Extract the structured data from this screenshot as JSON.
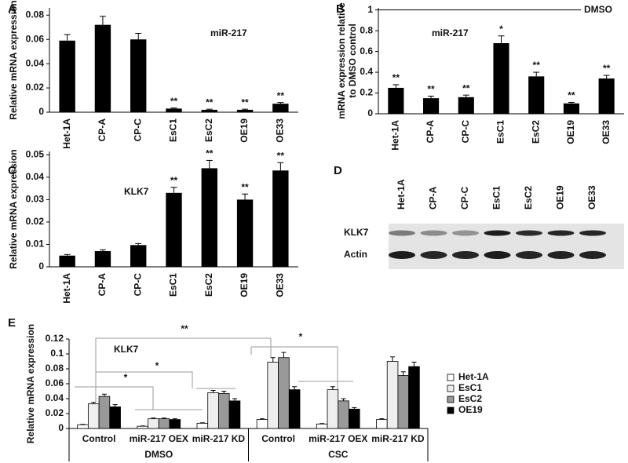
{
  "chart_data": [
    {
      "type": "bar",
      "panel": "A",
      "ylabel": "Relative mRNA expression",
      "annotation": "miR-217",
      "categories": [
        "Het-1A",
        "CP-A",
        "CP-C",
        "EsC1",
        "EsC2",
        "OE19",
        "OE33"
      ],
      "values": [
        0.059,
        0.072,
        0.06,
        0.003,
        0.002,
        0.002,
        0.007
      ],
      "errors": [
        0.005,
        0.007,
        0.005,
        0.0005,
        0.0005,
        0.0005,
        0.001
      ],
      "significance": [
        null,
        null,
        null,
        "**",
        "**",
        "**",
        "**"
      ],
      "color": "#000000",
      "ylim": [
        0,
        0.086
      ],
      "yticks": [
        0,
        0.02,
        0.04,
        0.06,
        0.08
      ]
    },
    {
      "type": "bar",
      "panel": "B",
      "ylabel": [
        "mRNA expression relative",
        "to DMSO control"
      ],
      "annotation": "miR-217",
      "categories": [
        "Het-1A",
        "CP-A",
        "CP-C",
        "EsC1",
        "EsC2",
        "OE19",
        "OE33"
      ],
      "values": [
        0.25,
        0.15,
        0.16,
        0.68,
        0.36,
        0.1,
        0.34
      ],
      "errors": [
        0.03,
        0.02,
        0.02,
        0.07,
        0.04,
        0.01,
        0.03
      ],
      "significance": [
        "**",
        "**",
        "**",
        "*",
        "**",
        "**",
        "**"
      ],
      "reference": {
        "value": 1,
        "label": "DMSO"
      },
      "color": "#000000",
      "ylim": [
        0,
        1.02
      ],
      "yticks": [
        0,
        0.2,
        0.4,
        0.6,
        0.8,
        1
      ]
    },
    {
      "type": "bar",
      "panel": "C",
      "ylabel": "Relative mRNA expression",
      "annotation": "KLK7",
      "categories": [
        "Het-1A",
        "CP-A",
        "CP-C",
        "EsC1",
        "EsC2",
        "OE19",
        "OE33"
      ],
      "values": [
        0.005,
        0.007,
        0.0097,
        0.033,
        0.044,
        0.03,
        0.043
      ],
      "errors": [
        0.0005,
        0.0006,
        0.0007,
        0.0025,
        0.0035,
        0.0025,
        0.0035
      ],
      "significance": [
        null,
        null,
        null,
        "**",
        "**",
        "**",
        "**"
      ],
      "color": "#000000",
      "ylim": [
        0,
        0.0515
      ],
      "yticks": [
        0,
        0.01,
        0.02,
        0.03,
        0.04,
        0.05
      ]
    },
    {
      "type": "blot",
      "panel": "D",
      "lanes": [
        "Het-1A",
        "CP-A",
        "CP-C",
        "EsC1",
        "EsC2",
        "OE19",
        "OE33"
      ],
      "rows": [
        "KLK7",
        "Actin"
      ]
    },
    {
      "type": "grouped_bar",
      "panel": "E",
      "ylabel": "Relative mRNA expression",
      "annotation": "KLK7",
      "categories": [
        "Control",
        "miR-217 OEX",
        "miR-217 KD",
        "Control",
        "miR-217 OEX",
        "miR-217 KD"
      ],
      "groups": [
        "DMSO",
        "CSC"
      ],
      "series": [
        {
          "name": "Het-1A",
          "color": "#ffffff",
          "values": [
            0.005,
            0.003,
            0.007,
            0.012,
            0.006,
            0.012
          ],
          "errors": [
            0.0005,
            0.0004,
            0.0006,
            0.001,
            0.0006,
            0.001
          ]
        },
        {
          "name": "EsC1",
          "color": "#eeeeee",
          "values": [
            0.033,
            0.013,
            0.048,
            0.089,
            0.052,
            0.09
          ],
          "errors": [
            0.002,
            0.001,
            0.003,
            0.006,
            0.004,
            0.006
          ]
        },
        {
          "name": "EsC2",
          "color": "#999999",
          "values": [
            0.043,
            0.013,
            0.047,
            0.095,
            0.037,
            0.071
          ],
          "errors": [
            0.003,
            0.001,
            0.003,
            0.007,
            0.003,
            0.005
          ]
        },
        {
          "name": "OE19",
          "color": "#000000",
          "values": [
            0.029,
            0.012,
            0.037,
            0.052,
            0.026,
            0.083
          ],
          "errors": [
            0.003,
            0.001,
            0.003,
            0.004,
            0.002,
            0.006
          ]
        }
      ],
      "annotations": [
        "**",
        "*",
        "*",
        "*"
      ],
      "ylim": [
        0,
        0.12
      ],
      "yticks": [
        0,
        0.02,
        0.04,
        0.06,
        0.08,
        0.1,
        0.12
      ]
    }
  ]
}
